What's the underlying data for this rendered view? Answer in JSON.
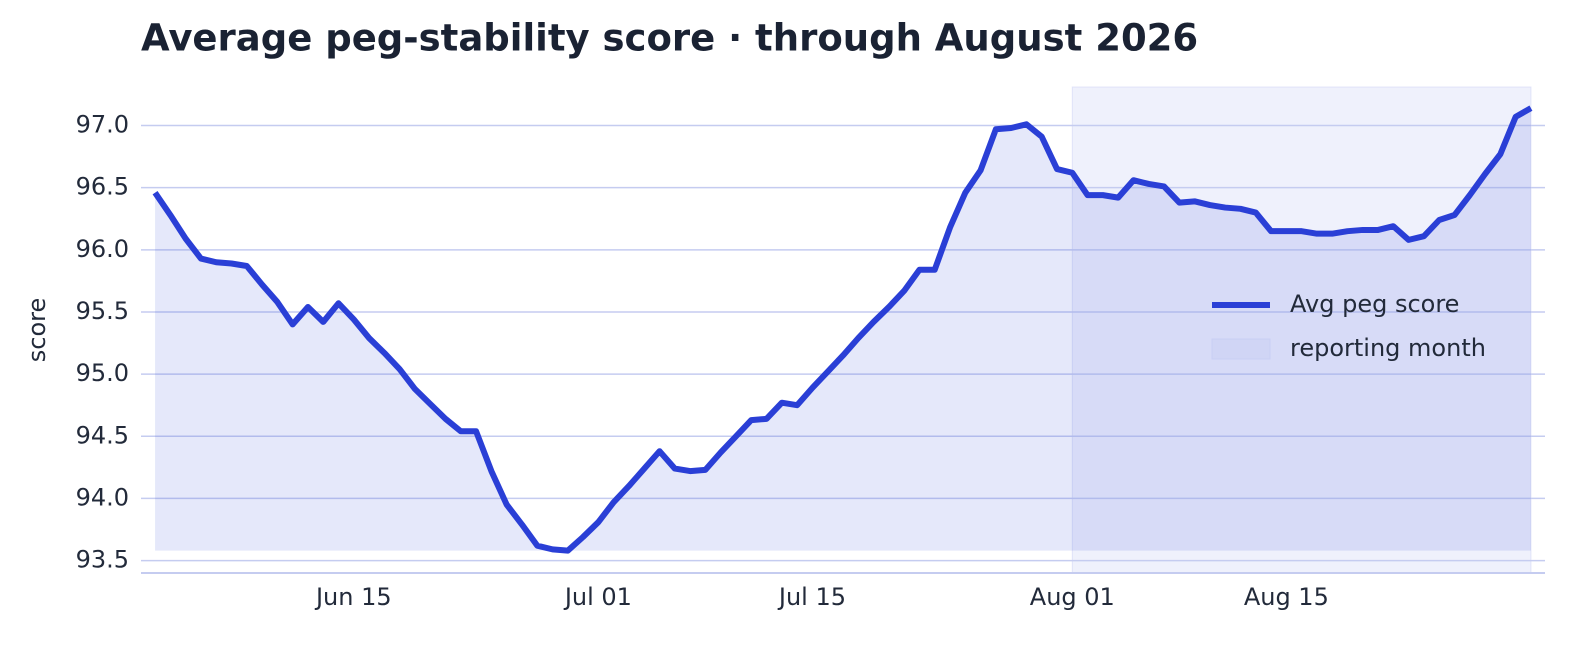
{
  "chart_data": {
    "type": "area_line",
    "title": "Average peg-stability score · through August 2026",
    "y_label": "score",
    "x": [
      "Jun 02",
      "Jun 03",
      "Jun 04",
      "Jun 05",
      "Jun 06",
      "Jun 07",
      "Jun 08",
      "Jun 09",
      "Jun 10",
      "Jun 11",
      "Jun 12",
      "Jun 13",
      "Jun 14",
      "Jun 15",
      "Jun 16",
      "Jun 17",
      "Jun 18",
      "Jun 19",
      "Jun 20",
      "Jun 21",
      "Jun 22",
      "Jun 23",
      "Jun 24",
      "Jun 25",
      "Jun 26",
      "Jun 27",
      "Jun 28",
      "Jun 29",
      "Jun 30",
      "Jul 01",
      "Jul 02",
      "Jul 03",
      "Jul 04",
      "Jul 05",
      "Jul 06",
      "Jul 07",
      "Jul 08",
      "Jul 09",
      "Jul 10",
      "Jul 11",
      "Jul 12",
      "Jul 13",
      "Jul 14",
      "Jul 15",
      "Jul 16",
      "Jul 17",
      "Jul 18",
      "Jul 19",
      "Jul 20",
      "Jul 21",
      "Jul 22",
      "Jul 23",
      "Jul 24",
      "Jul 25",
      "Jul 26",
      "Jul 27",
      "Jul 28",
      "Jul 29",
      "Jul 30",
      "Jul 31",
      "Aug 01",
      "Aug 02",
      "Aug 03",
      "Aug 04",
      "Aug 05",
      "Aug 06",
      "Aug 07",
      "Aug 08",
      "Aug 09",
      "Aug 10",
      "Aug 11",
      "Aug 12",
      "Aug 13",
      "Aug 14",
      "Aug 15",
      "Aug 16",
      "Aug 17",
      "Aug 18",
      "Aug 19",
      "Aug 20",
      "Aug 21",
      "Aug 22",
      "Aug 23",
      "Aug 24",
      "Aug 25",
      "Aug 26",
      "Aug 27",
      "Aug 28",
      "Aug 29",
      "Aug 30",
      "Aug 31"
    ],
    "series": [
      {
        "name": "Avg peg score",
        "color": "#2a3fd6",
        "values": [
          96.46,
          96.28,
          96.09,
          95.93,
          95.9,
          95.89,
          95.87,
          95.72,
          95.58,
          95.4,
          95.54,
          95.42,
          95.57,
          95.44,
          95.29,
          95.17,
          95.04,
          94.88,
          94.76,
          94.64,
          94.54,
          94.54,
          94.22,
          93.95,
          93.79,
          93.62,
          93.59,
          93.58,
          93.69,
          93.81,
          93.97,
          94.1,
          94.24,
          94.38,
          94.24,
          94.22,
          94.23,
          94.37,
          94.5,
          94.63,
          94.64,
          94.77,
          94.75,
          94.89,
          95.02,
          95.15,
          95.29,
          95.42,
          95.54,
          95.67,
          95.84,
          95.84,
          96.18,
          96.46,
          96.64,
          96.97,
          96.98,
          97.01,
          96.91,
          96.65,
          96.62,
          96.44,
          96.44,
          96.42,
          96.56,
          96.53,
          96.51,
          96.38,
          96.39,
          96.36,
          96.34,
          96.33,
          96.3,
          96.15,
          96.15,
          96.15,
          96.13,
          96.13,
          96.15,
          96.16,
          96.16,
          96.19,
          96.08,
          96.11,
          96.24,
          96.28,
          96.44,
          96.61,
          96.77,
          97.07,
          97.14
        ]
      }
    ],
    "highlight": {
      "label": "reporting month",
      "start": "Aug 01",
      "end": "Aug 31",
      "color": "#c9cff4"
    },
    "xticks": [
      "Jun 15",
      "Jul 01",
      "Jul 15",
      "Aug 01",
      "Aug 15"
    ],
    "ylim": [
      93.4,
      97.31
    ],
    "yticks": [
      {
        "value": 93.5,
        "label": "93.5"
      },
      {
        "value": 94.0,
        "label": "94.0"
      },
      {
        "value": 94.5,
        "label": "94.5"
      },
      {
        "value": 95.0,
        "label": "95.0"
      },
      {
        "value": 95.5,
        "label": "95.5"
      },
      {
        "value": 96.0,
        "label": "96.0"
      },
      {
        "value": 96.5,
        "label": "96.5"
      },
      {
        "value": 97.0,
        "label": "97.0"
      }
    ],
    "grid": true,
    "legend": "right"
  }
}
